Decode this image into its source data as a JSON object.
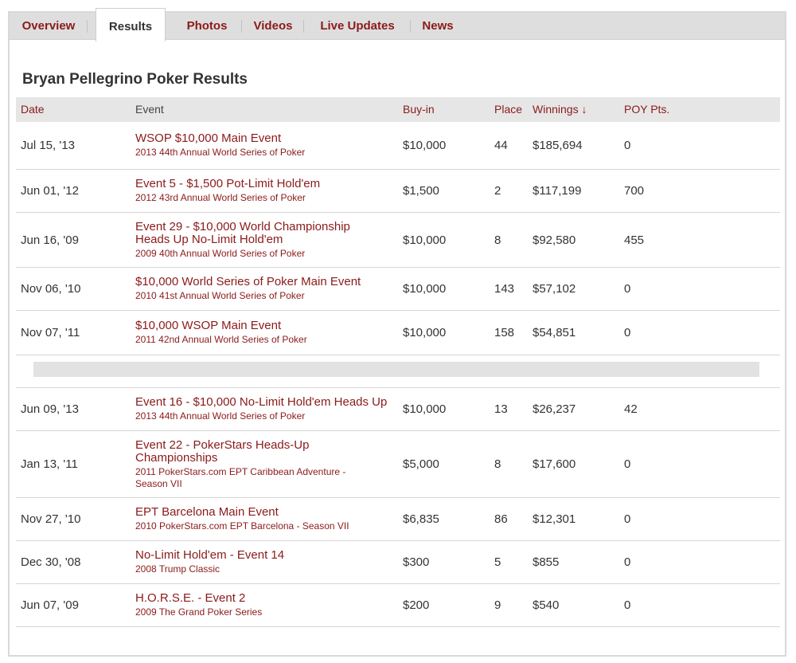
{
  "tabs": [
    {
      "label": "Overview",
      "active": false
    },
    {
      "label": "Results",
      "active": true
    },
    {
      "label": "Photos",
      "active": false
    },
    {
      "label": "Videos",
      "active": false
    },
    {
      "label": "Live Updates",
      "active": false
    },
    {
      "label": "News",
      "active": false
    }
  ],
  "page": {
    "title": "Bryan Pellegrino Poker Results"
  },
  "columns": {
    "date": "Date",
    "event": "Event",
    "buyin": "Buy-in",
    "place": "Place",
    "winnings": "Winnings ↓",
    "poy": "POY Pts."
  },
  "rows": [
    {
      "date": "Jul 15, '13",
      "event": "WSOP $10,000 Main Event",
      "event_line2": "",
      "series": "2013 44th Annual World Series of Poker",
      "series_line2": "",
      "buyin": "$10,000",
      "place": "44",
      "winnings": "$185,694",
      "poy": "0"
    },
    {
      "date": "Jun 01, '12",
      "event": "Event 5 - $1,500 Pot-Limit Hold'em",
      "event_line2": "",
      "series": "2012 43rd Annual World Series of Poker",
      "series_line2": "",
      "buyin": "$1,500",
      "place": "2",
      "winnings": "$117,199",
      "poy": "700"
    },
    {
      "date": "Jun 16, '09",
      "event": "Event 29 - $10,000 World Championship",
      "event_line2": "Heads Up No-Limit Hold'em",
      "series": "2009 40th Annual World Series of Poker",
      "series_line2": "",
      "buyin": "$10,000",
      "place": "8",
      "winnings": "$92,580",
      "poy": "455"
    },
    {
      "date": "Nov 06, '10",
      "event": "$10,000 World Series of Poker Main Event",
      "event_line2": "",
      "series": "2010 41st Annual World Series of Poker",
      "series_line2": "",
      "buyin": "$10,000",
      "place": "143",
      "winnings": "$57,102",
      "poy": "0"
    },
    {
      "date": "Nov 07, '11",
      "event": "$10,000 WSOP Main Event",
      "event_line2": "",
      "series": "2011 42nd Annual World Series of Poker",
      "series_line2": "",
      "buyin": "$10,000",
      "place": "158",
      "winnings": "$54,851",
      "poy": "0"
    },
    {
      "date": "Jun 09, '13",
      "event": "Event 16 - $10,000 No-Limit Hold'em Heads Up",
      "event_line2": "",
      "series": "2013 44th Annual World Series of Poker",
      "series_line2": "",
      "buyin": "$10,000",
      "place": "13",
      "winnings": "$26,237",
      "poy": "42"
    },
    {
      "date": "Jan 13, '11",
      "event": "Event 22 - PokerStars Heads-Up",
      "event_line2": "Championships",
      "series": "2011 PokerStars.com EPT Caribbean Adventure -",
      "series_line2": "Season VII",
      "buyin": "$5,000",
      "place": "8",
      "winnings": "$17,600",
      "poy": "0"
    },
    {
      "date": "Nov 27, '10",
      "event": "EPT Barcelona Main Event",
      "event_line2": "",
      "series": "2010 PokerStars.com EPT Barcelona - Season VII",
      "series_line2": "",
      "buyin": "$6,835",
      "place": "86",
      "winnings": "$12,301",
      "poy": "0"
    },
    {
      "date": "Dec 30, '08",
      "event": "No-Limit Hold'em - Event 14",
      "event_line2": "",
      "series": "2008 Trump Classic",
      "series_line2": "",
      "buyin": "$300",
      "place": "5",
      "winnings": "$855",
      "poy": "0"
    },
    {
      "date": "Jun 07, '09",
      "event": "H.O.R.S.E. - Event 2",
      "event_line2": "",
      "series": "2009 The Grand Poker Series",
      "series_line2": "",
      "buyin": "$200",
      "place": "9",
      "winnings": "$540",
      "poy": "0"
    }
  ]
}
